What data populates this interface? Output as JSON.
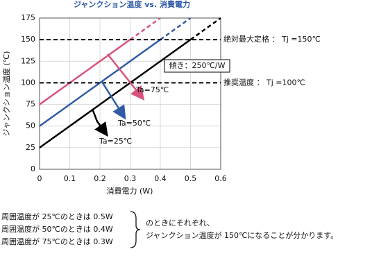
{
  "chart_data": {
    "type": "line",
    "title": "ジャンクション温度 vs. 消費電力",
    "x_label": "消費電力 (W)",
    "y_label": "ジャンクション温度 (℃)",
    "xlim": [
      0,
      0.6
    ],
    "xticks": [
      0,
      0.1,
      0.2,
      0.3,
      0.4,
      0.5,
      0.6
    ],
    "ylim": [
      0,
      175
    ],
    "yticks": [
      0,
      25,
      50,
      75,
      100,
      125,
      150,
      175
    ],
    "grid": true,
    "series": [
      {
        "name": "Ta=75℃",
        "color": "#d9527a",
        "x": [
          0,
          0.3
        ],
        "values": [
          75,
          150
        ],
        "dashed_x": [
          0.3,
          0.4
        ],
        "dashed_values": [
          150,
          175
        ]
      },
      {
        "name": "Ta=50℃",
        "color": "#2f5aa8",
        "x": [
          0,
          0.4
        ],
        "values": [
          50,
          150
        ],
        "dashed_x": [
          0.4,
          0.5
        ],
        "dashed_values": [
          150,
          175
        ]
      },
      {
        "name": "Ta=25℃",
        "color": "#000000",
        "x": [
          0,
          0.5
        ],
        "values": [
          25,
          150
        ],
        "dashed_x": [
          0.5,
          0.6
        ],
        "dashed_values": [
          150,
          175
        ]
      }
    ],
    "reference_lines": [
      {
        "value": 150,
        "label": "絶対最大定格 ： Tj =150℃"
      },
      {
        "value": 100,
        "label": "推奨温度 ： Tj =100℃"
      }
    ],
    "slope_note": "傾き：250℃/W",
    "notes_left": [
      "周囲温度が 25℃のときは 0.5W",
      "周囲温度が 50℃のときは 0.4W",
      "周囲温度が 75℃のときは 0.3W"
    ],
    "notes_right": [
      "のときにそれぞれ、",
      "ジャンクション温度が 150℃になることが分かります。"
    ]
  }
}
